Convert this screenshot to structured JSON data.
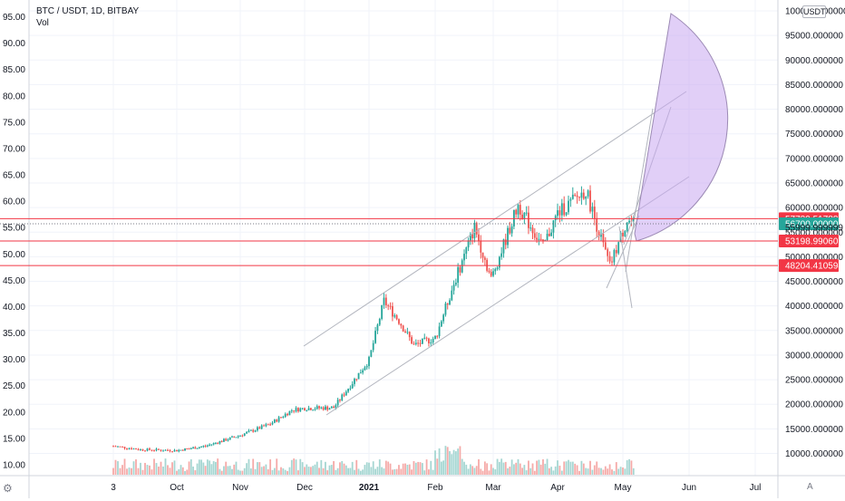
{
  "header": {
    "symbol": "BTC / USDT, 1D, BITBAY",
    "volume_label": "Vol",
    "currency": "USDT"
  },
  "colors": {
    "up": "#26a69a",
    "down": "#ef5350",
    "hline": "#f23645",
    "current": "#26a69a",
    "channel": "#b2b5be",
    "fan_fill": "#c8a8f0"
  },
  "chart_data": [
    {
      "type": "candlestick",
      "title": "BTC / USDT, 1D, BITBAY",
      "xlabel": "",
      "ylabel": "",
      "x_ticks": [
        "3",
        "Oct",
        "Nov",
        "Dec",
        "2021",
        "Feb",
        "Mar",
        "Apr",
        "May",
        "Jun",
        "Jul"
      ],
      "right_axis": {
        "ylim": [
          5000,
          100000
        ],
        "ticks": [
          "100000.000000",
          "95000.000000",
          "90000.000000",
          "85000.000000",
          "80000.000000",
          "75000.000000",
          "70000.000000",
          "65000.000000",
          "60000.000000",
          "55000.000000",
          "50000.000000",
          "45000.000000",
          "40000.000000",
          "35000.000000",
          "30000.000000",
          "25000.000000",
          "20000.000000",
          "15000.000000",
          "10000.000000"
        ]
      },
      "left_axis": {
        "ticks": [
          "95.00",
          "90.00",
          "85.00",
          "80.00",
          "75.00",
          "70.00",
          "65.00",
          "60.00",
          "55.00",
          "50.00",
          "45.00",
          "40.00",
          "35.00",
          "30.00",
          "25.00",
          "20.00",
          "15.00",
          "10.00"
        ]
      },
      "price_labels": [
        {
          "value": "57739.517887",
          "kind": "level"
        },
        {
          "value": "56700.000002",
          "kind": "current"
        },
        {
          "value": "55999.999999",
          "kind": "partial"
        },
        {
          "value": "53198.990607",
          "kind": "level"
        },
        {
          "value": "48204.410598",
          "kind": "level"
        }
      ],
      "horizontal_levels": [
        57739.517887,
        53198.990607,
        48204.410598
      ],
      "current_price": 56700.000002,
      "close_series": {
        "dates": [
          "2020-09-03",
          "2020-09-15",
          "2020-10-01",
          "2020-10-15",
          "2020-11-01",
          "2020-11-15",
          "2020-11-25",
          "2020-12-01",
          "2020-12-15",
          "2021-01-01",
          "2021-01-08",
          "2021-01-15",
          "2021-01-22",
          "2021-02-01",
          "2021-02-10",
          "2021-02-20",
          "2021-02-28",
          "2021-03-13",
          "2021-03-25",
          "2021-04-01",
          "2021-04-14",
          "2021-04-25",
          "2021-05-03",
          "2021-05-06"
        ],
        "values": [
          11500,
          10800,
          10600,
          11500,
          13700,
          16000,
          18800,
          19200,
          19300,
          29000,
          41000,
          37000,
          32000,
          33500,
          44500,
          56000,
          45500,
          60500,
          52000,
          58800,
          63500,
          48000,
          57500,
          56700
        ]
      },
      "volume_note": "volume histogram shown at bottom"
    }
  ]
}
